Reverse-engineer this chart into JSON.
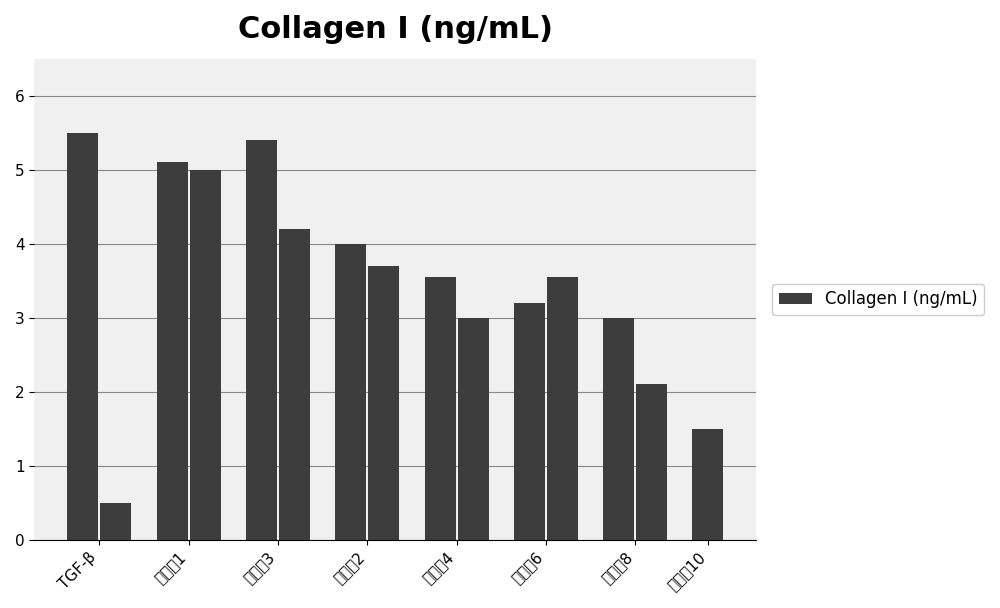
{
  "title": "Collagen Ⅰ (ng/mL)",
  "x_labels": [
    "TGF-β",
    "实施例1",
    "实施例3",
    "对比例2",
    "对比例4",
    "对比例6",
    "对比例8",
    "对比例10"
  ],
  "bar_pairs": [
    [
      5.5,
      0.5
    ],
    [
      5.1,
      5.0
    ],
    [
      5.4,
      4.2
    ],
    [
      4.0,
      3.7
    ],
    [
      3.55,
      3.0
    ],
    [
      3.2,
      3.55
    ],
    [
      3.0,
      2.1
    ],
    [
      1.5,
      null
    ]
  ],
  "bar_color": "#3d3d3d",
  "background_color": "#f0f0f0",
  "ylim": [
    0,
    6.5
  ],
  "yticks": [
    0,
    1,
    2,
    3,
    4,
    5,
    6
  ],
  "legend_label": "Collagen Ⅰ (ng/mL)",
  "title_fontsize": 22,
  "tick_fontsize": 11,
  "legend_fontsize": 12,
  "grid_color": "#888888"
}
